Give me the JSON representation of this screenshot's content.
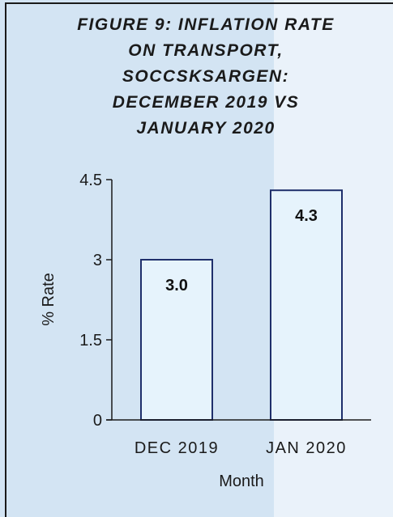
{
  "chart_data": {
    "type": "bar",
    "title_lines": [
      "FIGURE 9: INFLATION RATE",
      "ON TRANSPORT,",
      "SOCCSKSARGEN:",
      "DECEMBER 2019 VS",
      "JANUARY 2020"
    ],
    "categories": [
      "DEC 2019",
      "JAN 2020"
    ],
    "values": [
      3.0,
      4.3
    ],
    "data_labels": [
      "3.0",
      "4.3"
    ],
    "xlabel": "Month",
    "ylabel": "% Rate",
    "ylim": [
      0,
      4.5
    ],
    "yticks": [
      0,
      1.5,
      3,
      4.5
    ],
    "ytick_labels": [
      "0",
      "1.5",
      "3",
      "4.5"
    ],
    "grid": false,
    "legend": "none",
    "colors": {
      "bar_fill": "#e6f3fc",
      "bar_stroke": "#1f2f6b",
      "panel_left": "#d3e4f3",
      "panel_right": "#eaf2fa",
      "border": "#1a1a1a",
      "axis": "#1a1a1a"
    }
  }
}
